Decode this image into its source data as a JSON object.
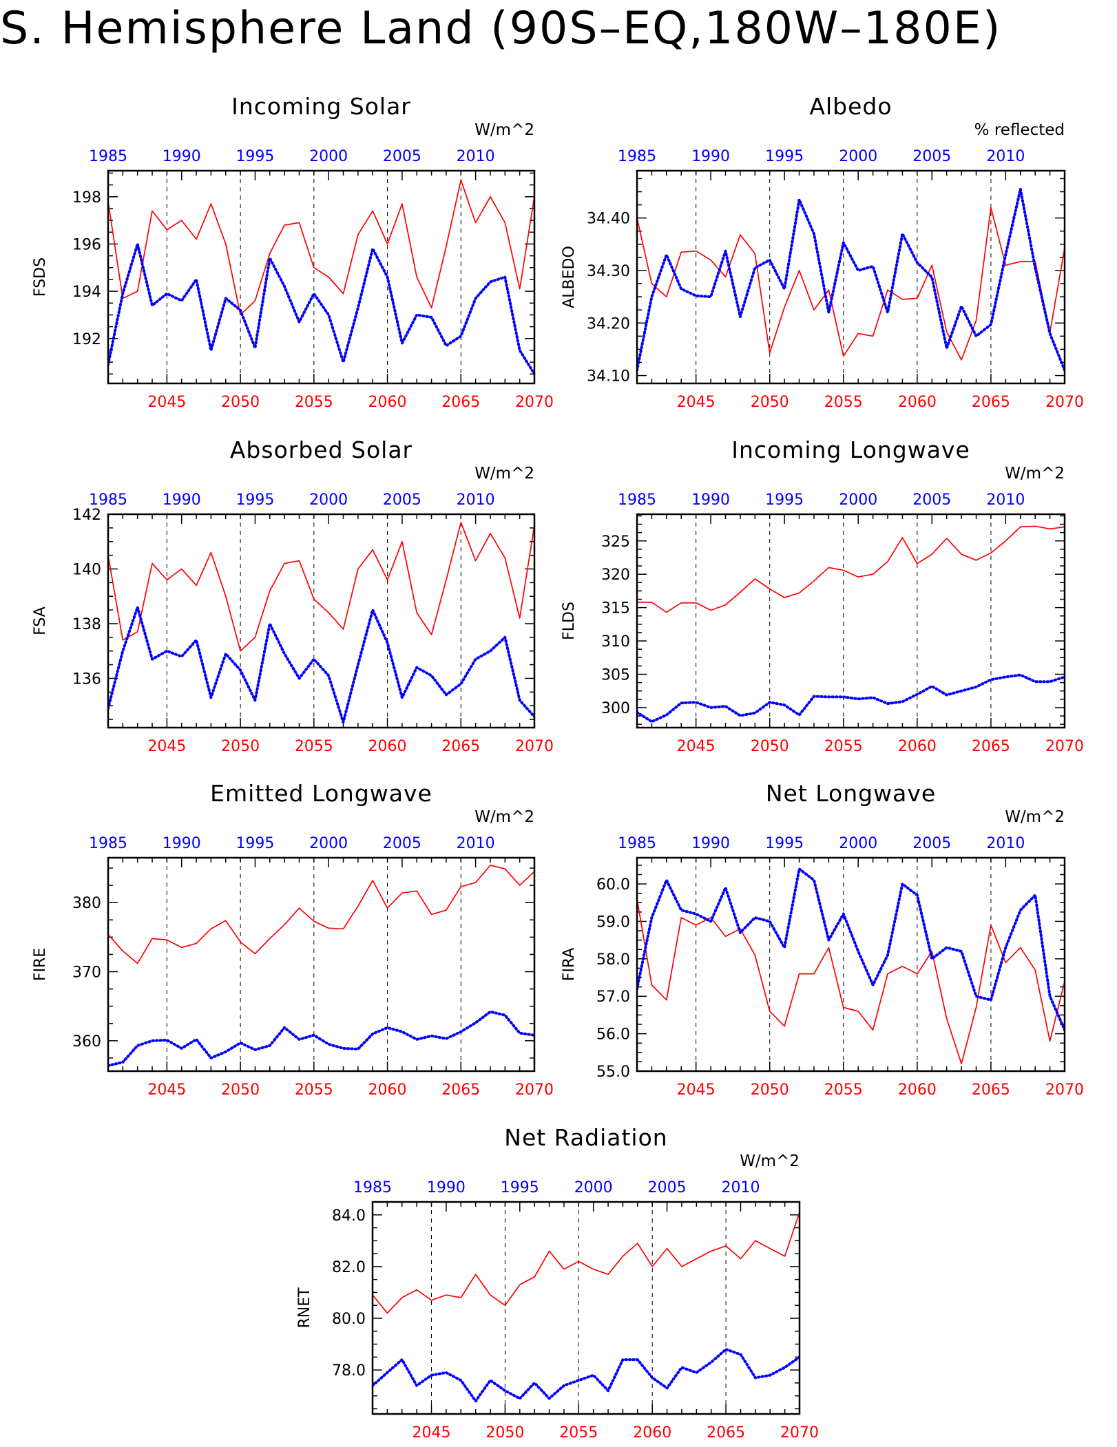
{
  "page": {
    "title": "S. Hemisphere Land (90S–EQ,180W–180E)"
  },
  "colors": {
    "series_a": "#ff0000",
    "series_b": "#0000ff",
    "axis": "#000000"
  },
  "chart_data": [
    {
      "type": "line",
      "title": "Incoming Solar",
      "ylabel": "FSDS",
      "units": "W/m^2",
      "ylim": [
        190.1,
        199.1
      ],
      "yticks": [
        192,
        194,
        196,
        198
      ],
      "ytick_labels": [
        "192",
        "194",
        "196",
        "198"
      ],
      "x_bottom": {
        "lim": [
          2041,
          2070
        ],
        "ticks": [
          2045,
          2050,
          2055,
          2060,
          2065,
          2070
        ]
      },
      "x_top": {
        "lim": [
          1985,
          2014
        ],
        "ticks": [
          1985,
          1990,
          1995,
          2000,
          2005,
          2010
        ]
      },
      "series": [
        {
          "values": [
            197.8,
            193.7,
            194.0,
            197.4,
            196.6,
            197.0,
            196.2,
            197.7,
            196.0,
            193.0,
            193.6,
            195.6,
            196.8,
            196.9,
            195.0,
            194.6,
            193.9,
            196.4,
            197.4,
            196.0,
            197.7,
            194.6,
            193.3,
            195.9,
            198.7,
            196.9,
            198.0,
            196.9,
            194.1,
            198.0
          ]
        },
        {
          "values": [
            190.9,
            193.9,
            196.0,
            193.4,
            193.9,
            193.6,
            194.5,
            191.5,
            193.7,
            193.2,
            191.6,
            195.4,
            194.2,
            192.7,
            193.9,
            193.0,
            191.0,
            193.3,
            195.8,
            194.6,
            191.8,
            193.0,
            192.9,
            191.7,
            192.1,
            193.7,
            194.4,
            194.6,
            191.5,
            190.5
          ]
        }
      ]
    },
    {
      "type": "line",
      "title": "Albedo",
      "ylabel": "ALBEDO",
      "units": "% reflected",
      "ylim": [
        34.085,
        34.49
      ],
      "yticks": [
        34.1,
        34.2,
        34.3,
        34.4
      ],
      "ytick_labels": [
        "34.10",
        "34.20",
        "34.30",
        "34.40"
      ],
      "x_bottom": {
        "lim": [
          2041,
          2070
        ],
        "ticks": [
          2045,
          2050,
          2055,
          2060,
          2065,
          2070
        ]
      },
      "x_top": {
        "lim": [
          1985,
          2014
        ],
        "ticks": [
          1985,
          1990,
          1995,
          2000,
          2005,
          2010
        ]
      },
      "series": [
        {
          "values": [
            34.4,
            34.275,
            34.25,
            34.335,
            34.337,
            34.32,
            34.288,
            34.368,
            34.332,
            34.143,
            34.23,
            34.3,
            34.225,
            34.263,
            34.137,
            34.18,
            34.175,
            34.263,
            34.245,
            34.247,
            34.31,
            34.183,
            34.13,
            34.205,
            34.42,
            34.31,
            34.317,
            34.317,
            34.182,
            34.343
          ]
        },
        {
          "values": [
            34.11,
            34.25,
            34.33,
            34.265,
            34.252,
            34.25,
            34.337,
            34.212,
            34.305,
            34.32,
            34.265,
            34.435,
            34.37,
            34.22,
            34.353,
            34.3,
            34.308,
            34.22,
            34.37,
            34.315,
            34.287,
            34.152,
            34.232,
            34.175,
            34.197,
            34.33,
            34.455,
            34.305,
            34.18,
            34.11
          ]
        }
      ]
    },
    {
      "type": "line",
      "title": "Absorbed Solar",
      "ylabel": "FSA",
      "units": "W/m^2",
      "ylim": [
        134.2,
        142.0
      ],
      "yticks": [
        136,
        138,
        140,
        142
      ],
      "ytick_labels": [
        "136",
        "138",
        "140",
        "142"
      ],
      "x_bottom": {
        "lim": [
          2041,
          2070
        ],
        "ticks": [
          2045,
          2050,
          2055,
          2060,
          2065,
          2070
        ]
      },
      "x_top": {
        "lim": [
          1985,
          2014
        ],
        "ticks": [
          1985,
          1990,
          1995,
          2000,
          2005,
          2010
        ]
      },
      "series": [
        {
          "values": [
            140.5,
            137.4,
            137.7,
            140.2,
            139.6,
            140.0,
            139.4,
            140.6,
            139.0,
            137.0,
            137.5,
            139.2,
            140.2,
            140.3,
            138.9,
            138.4,
            137.8,
            140.0,
            140.7,
            139.6,
            141.0,
            138.4,
            137.6,
            139.6,
            141.7,
            140.3,
            141.3,
            140.4,
            138.2,
            141.6
          ]
        },
        {
          "values": [
            134.9,
            137.0,
            138.6,
            136.7,
            137.0,
            136.8,
            137.4,
            135.3,
            136.9,
            136.3,
            135.2,
            138.0,
            136.9,
            136.0,
            136.7,
            136.1,
            134.4,
            136.5,
            138.5,
            137.3,
            135.3,
            136.4,
            136.1,
            135.4,
            135.8,
            136.7,
            137.0,
            137.5,
            135.2,
            134.6
          ]
        }
      ]
    },
    {
      "type": "line",
      "title": "Incoming Longwave",
      "ylabel": "FLDS",
      "units": "W/m^2",
      "ylim": [
        297.0,
        329.0
      ],
      "yticks": [
        300,
        305,
        310,
        315,
        320,
        325
      ],
      "ytick_labels": [
        "300",
        "305",
        "310",
        "315",
        "320",
        "325"
      ],
      "x_bottom": {
        "lim": [
          2041,
          2070
        ],
        "ticks": [
          2045,
          2050,
          2055,
          2060,
          2065,
          2070
        ]
      },
      "x_top": {
        "lim": [
          1985,
          2014
        ],
        "ticks": [
          1985,
          1990,
          1995,
          2000,
          2005,
          2010
        ]
      },
      "series": [
        {
          "values": [
            315.8,
            315.8,
            314.3,
            315.7,
            315.7,
            314.6,
            315.4,
            317.3,
            319.3,
            317.8,
            316.5,
            317.2,
            319.0,
            321.0,
            320.6,
            319.6,
            320.0,
            321.9,
            325.5,
            321.6,
            323.0,
            325.4,
            323.0,
            322.1,
            323.2,
            325.0,
            327.1,
            327.2,
            326.8,
            327.1
          ]
        },
        {
          "values": [
            299.3,
            297.9,
            298.9,
            300.7,
            300.8,
            300.0,
            300.2,
            298.8,
            299.2,
            300.8,
            300.4,
            298.9,
            301.7,
            301.6,
            301.6,
            301.3,
            301.5,
            300.6,
            300.9,
            302.0,
            303.2,
            301.9,
            302.5,
            303.1,
            304.2,
            304.6,
            304.9,
            303.9,
            303.9,
            304.6
          ]
        }
      ]
    },
    {
      "type": "line",
      "title": "Emitted Longwave",
      "ylabel": "FIRE",
      "units": "W/m^2",
      "ylim": [
        355.6,
        386.5
      ],
      "yticks": [
        360,
        370,
        380
      ],
      "ytick_labels": [
        "360",
        "370",
        "380"
      ],
      "x_bottom": {
        "lim": [
          2041,
          2070
        ],
        "ticks": [
          2045,
          2050,
          2055,
          2060,
          2065,
          2070
        ]
      },
      "x_top": {
        "lim": [
          1985,
          2014
        ],
        "ticks": [
          1985,
          1990,
          1995,
          2000,
          2005,
          2010
        ]
      },
      "series": [
        {
          "values": [
            375.4,
            373.0,
            371.2,
            374.8,
            374.6,
            373.5,
            374.1,
            376.2,
            377.4,
            374.3,
            372.6,
            374.8,
            376.8,
            379.2,
            377.3,
            376.3,
            376.2,
            379.5,
            383.2,
            379.2,
            381.4,
            381.7,
            378.3,
            378.9,
            382.3,
            382.9,
            385.4,
            384.9,
            382.5,
            384.5
          ]
        },
        {
          "values": [
            356.4,
            356.9,
            359.3,
            360.0,
            360.1,
            358.9,
            360.2,
            357.5,
            358.4,
            359.7,
            358.7,
            359.3,
            361.9,
            360.2,
            360.8,
            359.5,
            358.9,
            358.8,
            361.0,
            361.9,
            361.3,
            360.2,
            360.7,
            360.3,
            361.3,
            362.6,
            364.2,
            363.7,
            361.1,
            360.8
          ]
        }
      ]
    },
    {
      "type": "line",
      "title": "Net Longwave",
      "ylabel": "FIRA",
      "units": "W/m^2",
      "ylim": [
        55.0,
        60.7
      ],
      "yticks": [
        55.0,
        56.0,
        57.0,
        58.0,
        59.0,
        60.0
      ],
      "ytick_labels": [
        "55.0",
        "56.0",
        "57.0",
        "58.0",
        "59.0",
        "60.0"
      ],
      "x_bottom": {
        "lim": [
          2041,
          2070
        ],
        "ticks": [
          2045,
          2050,
          2055,
          2060,
          2065,
          2070
        ]
      },
      "x_top": {
        "lim": [
          1985,
          2014
        ],
        "ticks": [
          1985,
          1990,
          1995,
          2000,
          2005,
          2010
        ]
      },
      "series": [
        {
          "values": [
            59.6,
            57.3,
            56.9,
            59.1,
            58.9,
            59.1,
            58.6,
            58.8,
            58.1,
            56.6,
            56.2,
            57.6,
            57.6,
            58.3,
            56.7,
            56.6,
            56.1,
            57.6,
            57.8,
            57.6,
            58.2,
            56.4,
            55.2,
            56.7,
            58.9,
            57.9,
            58.3,
            57.7,
            55.8,
            57.4
          ]
        },
        {
          "values": [
            57.2,
            59.1,
            60.1,
            59.3,
            59.2,
            59.0,
            59.9,
            58.7,
            59.1,
            59.0,
            58.3,
            60.4,
            60.1,
            58.5,
            59.2,
            58.2,
            57.3,
            58.1,
            60.0,
            59.7,
            58.0,
            58.3,
            58.2,
            57.0,
            56.9,
            58.3,
            59.3,
            59.7,
            57.0,
            56.1
          ]
        }
      ]
    },
    {
      "type": "line",
      "title": "Net Radiation",
      "ylabel": "RNET",
      "units": "W/m^2",
      "ylim": [
        76.3,
        84.5
      ],
      "yticks": [
        78.0,
        80.0,
        82.0,
        84.0
      ],
      "ytick_labels": [
        "78.0",
        "80.0",
        "82.0",
        "84.0"
      ],
      "x_bottom": {
        "lim": [
          2041,
          2070
        ],
        "ticks": [
          2045,
          2050,
          2055,
          2060,
          2065,
          2070
        ]
      },
      "x_top": {
        "lim": [
          1985,
          2014
        ],
        "ticks": [
          1985,
          1990,
          1995,
          2000,
          2005,
          2010
        ]
      },
      "series": [
        {
          "values": [
            80.9,
            80.2,
            80.8,
            81.1,
            80.7,
            80.9,
            80.8,
            81.7,
            80.9,
            80.5,
            81.3,
            81.6,
            82.6,
            81.9,
            82.2,
            81.9,
            81.7,
            82.4,
            82.9,
            82.0,
            82.7,
            82.0,
            82.3,
            82.6,
            82.8,
            82.3,
            83.0,
            82.7,
            82.4,
            84.1
          ]
        },
        {
          "values": [
            77.4,
            77.9,
            78.4,
            77.4,
            77.8,
            77.9,
            77.6,
            76.8,
            77.6,
            77.2,
            76.9,
            77.5,
            76.9,
            77.4,
            77.6,
            77.8,
            77.2,
            78.4,
            78.4,
            77.7,
            77.3,
            78.1,
            77.9,
            78.3,
            78.8,
            78.6,
            77.7,
            77.8,
            78.1,
            78.5
          ]
        }
      ]
    }
  ]
}
